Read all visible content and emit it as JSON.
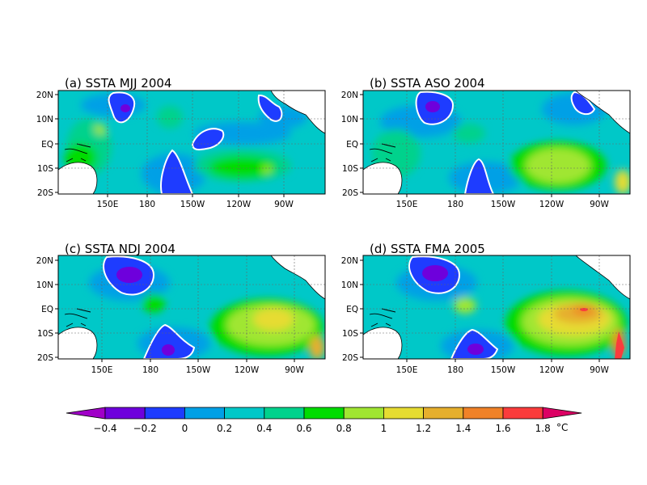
{
  "panels": [
    {
      "title": "(a) SSTA MJJ 2004"
    },
    {
      "title": "(b) SSTA ASO 2004"
    },
    {
      "title": "(c) SSTA NDJ 2004"
    },
    {
      "title": "(d) SSTA FMA 2005"
    }
  ],
  "lat_ticks": [
    "20N",
    "10N",
    "EQ",
    "10S",
    "20S"
  ],
  "lon_ticks": [
    "150E",
    "180",
    "150W",
    "120W",
    "90W"
  ],
  "colorbar": {
    "labels": [
      "-0.4",
      "-0.2",
      "0",
      "0.2",
      "0.4",
      "0.6",
      "0.8",
      "1",
      "1.2",
      "1.4",
      "1.6",
      "1.8"
    ],
    "unit": "°C",
    "colors": [
      "#a000c8",
      "#6e00dc",
      "#1e3cff",
      "#00a0e6",
      "#00c8c8",
      "#00d28c",
      "#00dc00",
      "#a0e632",
      "#e6dc32",
      "#e6af2d",
      "#f08228",
      "#fa3c3c",
      "#dc0064"
    ]
  },
  "map_style": {
    "base_color": "#00c8c8",
    "land_color": "#ffffff",
    "contour_color": "#ffffff",
    "grid_style": "dotted"
  }
}
